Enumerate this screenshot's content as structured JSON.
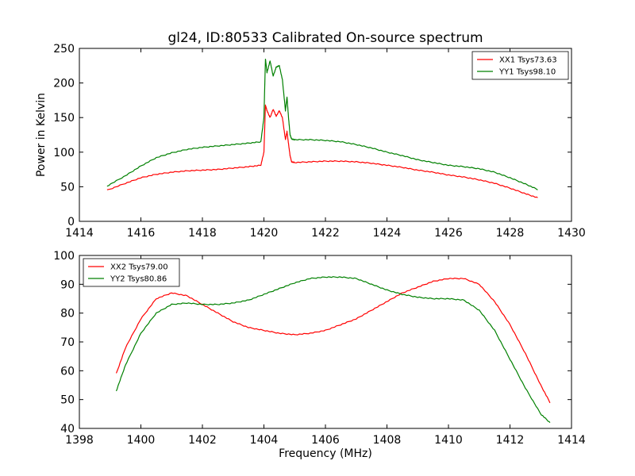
{
  "figure": {
    "title": "gl24, ID:80533 Calibrated On-source spectrum"
  },
  "chart_data": [
    {
      "type": "line",
      "title": "gl24, ID:80533 Calibrated On-source spectrum",
      "xlabel": "",
      "ylabel": "Power in Kelvin",
      "xlim": [
        1414,
        1430
      ],
      "ylim": [
        0,
        250
      ],
      "xticks": [
        1414,
        1416,
        1418,
        1420,
        1422,
        1424,
        1426,
        1428,
        1430
      ],
      "yticks": [
        0,
        50,
        100,
        150,
        200,
        250
      ],
      "grid": false,
      "legend_position": "top-right",
      "series": [
        {
          "name": "XX1 Tsys73.63",
          "color": "#ff0000",
          "x": [
            1414.9,
            1415.5,
            1416.0,
            1416.5,
            1417.0,
            1417.5,
            1418.0,
            1418.5,
            1419.0,
            1419.5,
            1419.9,
            1420.0,
            1420.05,
            1420.1,
            1420.2,
            1420.3,
            1420.4,
            1420.5,
            1420.6,
            1420.7,
            1420.75,
            1420.8,
            1420.85,
            1420.9,
            1421.0,
            1421.5,
            1422.0,
            1422.5,
            1423.0,
            1423.5,
            1424.0,
            1424.5,
            1425.0,
            1425.5,
            1426.0,
            1426.5,
            1427.0,
            1427.5,
            1428.0,
            1428.5,
            1428.9
          ],
          "y": [
            45,
            55,
            63,
            68,
            71,
            73,
            74,
            75,
            77,
            79,
            81,
            100,
            168,
            160,
            150,
            162,
            152,
            160,
            150,
            118,
            130,
            112,
            95,
            86,
            85,
            86,
            87,
            87,
            86,
            84,
            81,
            78,
            74,
            71,
            67,
            64,
            60,
            55,
            48,
            40,
            34
          ]
        },
        {
          "name": "YY1 Tsys98.10",
          "color": "#008000",
          "x": [
            1414.9,
            1415.5,
            1416.0,
            1416.5,
            1417.0,
            1417.5,
            1418.0,
            1418.5,
            1419.0,
            1419.5,
            1419.9,
            1420.0,
            1420.05,
            1420.1,
            1420.2,
            1420.3,
            1420.4,
            1420.5,
            1420.6,
            1420.7,
            1420.75,
            1420.8,
            1420.85,
            1420.9,
            1421.0,
            1421.5,
            1422.0,
            1422.5,
            1423.0,
            1423.5,
            1424.0,
            1424.5,
            1425.0,
            1425.5,
            1426.0,
            1426.5,
            1427.0,
            1427.5,
            1428.0,
            1428.5,
            1428.9
          ],
          "y": [
            51,
            66,
            80,
            92,
            99,
            104,
            107,
            109,
            111,
            113,
            115,
            150,
            235,
            215,
            232,
            210,
            223,
            225,
            205,
            160,
            180,
            150,
            125,
            119,
            118,
            118,
            117,
            115,
            111,
            106,
            100,
            95,
            89,
            85,
            81,
            79,
            76,
            71,
            63,
            54,
            46
          ]
        }
      ]
    },
    {
      "type": "line",
      "title": "",
      "xlabel": "Frequency (MHz)",
      "ylabel": "",
      "xlim": [
        1398,
        1414
      ],
      "ylim": [
        40,
        100
      ],
      "xticks": [
        1398,
        1400,
        1402,
        1404,
        1406,
        1408,
        1410,
        1412,
        1414
      ],
      "yticks": [
        40,
        50,
        60,
        70,
        80,
        90,
        100
      ],
      "grid": false,
      "legend_position": "top-left",
      "series": [
        {
          "name": "XX2 Tsys79.00",
          "color": "#ff0000",
          "x": [
            1399.2,
            1399.5,
            1400.0,
            1400.5,
            1401.0,
            1401.5,
            1402.0,
            1402.5,
            1403.0,
            1403.5,
            1404.0,
            1404.5,
            1405.0,
            1405.5,
            1406.0,
            1406.5,
            1407.0,
            1407.5,
            1408.0,
            1408.5,
            1409.0,
            1409.5,
            1410.0,
            1410.5,
            1411.0,
            1411.5,
            1412.0,
            1412.5,
            1413.0,
            1413.3
          ],
          "y": [
            59,
            68,
            78,
            85,
            87,
            86,
            83,
            80,
            77,
            75,
            74,
            73,
            72.5,
            73,
            74,
            76,
            78,
            81,
            84,
            87,
            89,
            91,
            92,
            92,
            90,
            84,
            76,
            66,
            55,
            49
          ]
        },
        {
          "name": "YY2 Tsys80.86",
          "color": "#008000",
          "x": [
            1399.2,
            1399.5,
            1400.0,
            1400.5,
            1401.0,
            1401.5,
            1402.0,
            1402.5,
            1403.0,
            1403.5,
            1404.0,
            1404.5,
            1405.0,
            1405.5,
            1406.0,
            1406.5,
            1407.0,
            1407.5,
            1408.0,
            1408.5,
            1409.0,
            1409.5,
            1410.0,
            1410.5,
            1411.0,
            1411.5,
            1412.0,
            1412.5,
            1413.0,
            1413.3
          ],
          "y": [
            53,
            62,
            73,
            80,
            83,
            83.5,
            83,
            83,
            83.5,
            84.5,
            86.5,
            88.5,
            90.5,
            92,
            92.5,
            92.5,
            92,
            90,
            88,
            86.5,
            85.5,
            85,
            85,
            84.5,
            81,
            74,
            64,
            54,
            45,
            42
          ]
        }
      ]
    }
  ]
}
